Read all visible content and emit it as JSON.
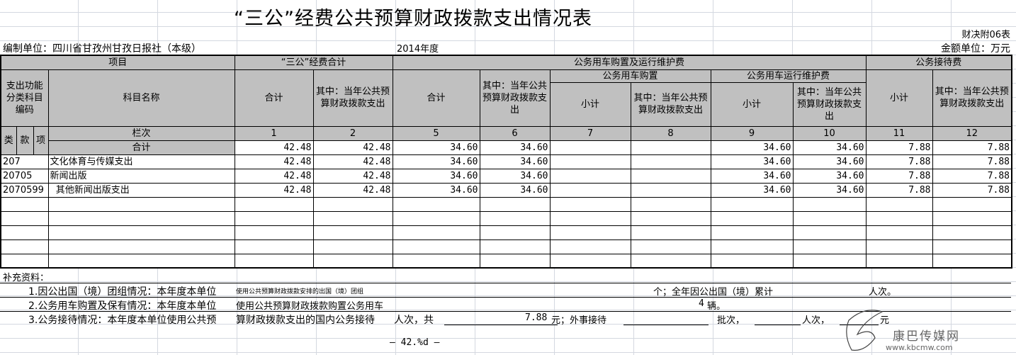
{
  "title": "“三公”经费公共预算财政拨款支出情况表",
  "form_no": "财决附06表",
  "unit": "编制单位：四川省甘孜州甘孜日报社（本级）",
  "year": "2014年度",
  "amount_unit": "金额单位：万元",
  "header": {
    "item": "项目",
    "sangong_total": "“三公”经费合计",
    "car": "公务用车购置及运行维护费",
    "reception": "公务接待费",
    "code": "支出功能分类科目编码",
    "subject_name": "科目名称",
    "total": "合计",
    "of_which": "其中：当年公共预算财政拨款支出",
    "car_purchase": "公务用车购置",
    "car_maintenance": "公务用车运行维护费",
    "subtotal": "小计",
    "lei": "类",
    "kuan": "款",
    "xiang": "项",
    "column_no": "栏次",
    "col_numbers": [
      "1",
      "2",
      "5",
      "6",
      "7",
      "8",
      "9",
      "10",
      "11",
      "12"
    ]
  },
  "total_row": {
    "label": "合计",
    "values": [
      "42.48",
      "42.48",
      "34.60",
      "34.60",
      "",
      "",
      "34.60",
      "34.60",
      "7.88",
      "7.88"
    ]
  },
  "rows": [
    {
      "code": "207",
      "name": "文化体育与传媒支出",
      "values": [
        "42.48",
        "42.48",
        "34.60",
        "34.60",
        "",
        "",
        "34.60",
        "34.60",
        "7.88",
        "7.88"
      ]
    },
    {
      "code": "20705",
      "name": "新闻出版",
      "values": [
        "42.48",
        "42.48",
        "34.60",
        "34.60",
        "",
        "",
        "34.60",
        "34.60",
        "7.88",
        "7.88"
      ]
    },
    {
      "code": "2070599",
      "name": "  其他新闻出版支出",
      "values": [
        "42.48",
        "42.48",
        "34.60",
        "34.60",
        "",
        "",
        "34.60",
        "34.60",
        "7.88",
        "7.88"
      ]
    }
  ],
  "supplement": {
    "title": "补充资料：",
    "item1_a": "1.因公出国（境）团组情况：本年度本单位",
    "item1_b": "使用公共预算财政拨款安排的出国（境）团组",
    "item1_c": "个；全年因公出国（境）累计",
    "item1_d": "人次。",
    "item2_a": "2.公务用车购置及保有情况：本年度本单位",
    "item2_b": "使用公共预算财政拨款购置公务用车",
    "item2_count": "4",
    "item2_c": "辆。",
    "item3_a": "3.公务接待情况：本年度本单位使用公共预",
    "item3_b": "算财政拨款支出的国内公务接待",
    "item3_c": "人次，共",
    "item3_amount": "7.88",
    "item3_d": "元；外事接待",
    "item3_e": "批次，",
    "item3_f": "人次，",
    "item3_g": "元"
  },
  "page_no": "— 42.%d —",
  "watermark": {
    "name": "康巴传媒网",
    "url": "www.kbcmw.com"
  }
}
